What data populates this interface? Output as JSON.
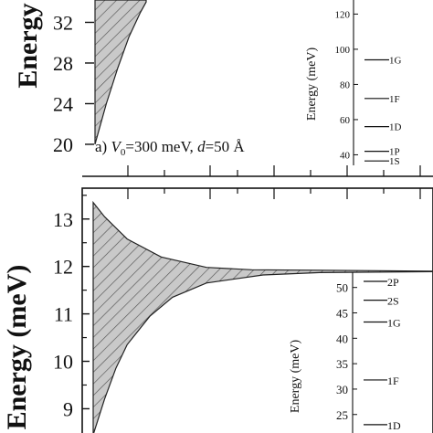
{
  "chart_data": [
    {
      "id": "panel-a",
      "type": "area",
      "ylabel": "Energy",
      "yticks": [
        20,
        24,
        28,
        32
      ],
      "ylim": [
        18.2,
        34.2
      ],
      "label_parts": {
        "prefix": "a) ",
        "v": "V",
        "v_sub": "0",
        "v_val": "=300 meV, ",
        "d": "d",
        "d_val": "=50 Å"
      },
      "series": [
        {
          "values": [
            [
              0,
              20.0
            ],
            [
              0.5,
              22.0
            ],
            [
              1,
              24.0
            ],
            [
              2,
              27.5
            ],
            [
              3,
              30.6
            ],
            [
              4,
              33.0
            ],
            [
              4.5,
              34.0
            ]
          ]
        },
        {
          "values": [
            [
              0,
              34.2
            ],
            [
              4.5,
              34.2
            ]
          ]
        }
      ],
      "inset": {
        "ylabel": "Energy (meV)",
        "yticks": [
          40,
          60,
          80,
          100,
          120
        ],
        "ylim": [
          34,
          128
        ],
        "levels": [
          {
            "label": "1G",
            "value": 94
          },
          {
            "label": "1F",
            "value": 72
          },
          {
            "label": "1D",
            "value": 56
          },
          {
            "label": "1P",
            "value": 42
          },
          {
            "label": "1S",
            "value": 36.5
          }
        ]
      }
    },
    {
      "id": "panel-b",
      "type": "area",
      "ylabel": "Energy (meV)",
      "yticks": [
        9,
        10,
        11,
        12,
        13
      ],
      "ylim": [
        8.45,
        13.65
      ],
      "series": [
        {
          "values": [
            [
              0,
              13.35
            ],
            [
              1,
              13.05
            ],
            [
              3,
              12.58
            ],
            [
              6,
              12.2
            ],
            [
              10,
              11.98
            ],
            [
              14,
              11.93
            ],
            [
              20,
              11.92
            ],
            [
              25,
              11.91
            ],
            [
              30,
              11.9
            ]
          ]
        },
        {
          "values": [
            [
              0,
              8.45
            ],
            [
              1,
              9.2
            ],
            [
              2,
              9.85
            ],
            [
              3,
              10.35
            ],
            [
              5,
              10.95
            ],
            [
              7,
              11.35
            ],
            [
              10,
              11.65
            ],
            [
              15,
              11.82
            ],
            [
              20,
              11.87
            ],
            [
              25,
              11.88
            ],
            [
              30,
              11.89
            ]
          ]
        }
      ],
      "inset": {
        "ylabel": "Energy (meV)",
        "yticks": [
          25,
          30,
          35,
          40,
          45,
          50
        ],
        "ylim": [
          21,
          53
        ],
        "levels": [
          {
            "label": "2P",
            "value": 51.2
          },
          {
            "label": "2S",
            "value": 47.5
          },
          {
            "label": "1G",
            "value": 43.2
          },
          {
            "label": "1F",
            "value": 31.8
          },
          {
            "label": "1D",
            "value": 23.0
          }
        ]
      }
    }
  ]
}
